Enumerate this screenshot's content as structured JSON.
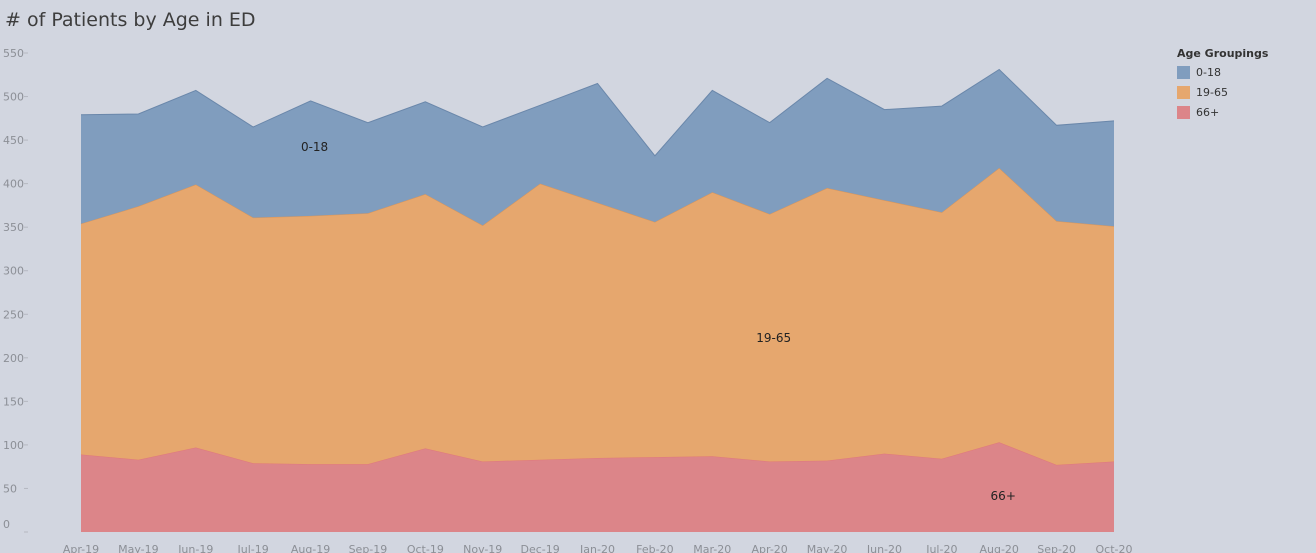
{
  "chart_data": {
    "type": "area",
    "stacked": true,
    "title": "# of Patients by Age in ED",
    "categories": [
      "Apr-19",
      "May-19",
      "Jun-19",
      "Jul-19",
      "Aug-19",
      "Sep-19",
      "Oct-19",
      "Nov-19",
      "Dec-19",
      "Jan-20",
      "Feb-20",
      "Mar-20",
      "Apr-20",
      "May-20",
      "Jun-20",
      "Jul-20",
      "Aug-20",
      "Sep-20",
      "Oct-20"
    ],
    "series": [
      {
        "name": "66+",
        "color": "#dc8589",
        "values": [
          89,
          83,
          97,
          79,
          78,
          78,
          96,
          81,
          83,
          85,
          86,
          87,
          81,
          82,
          90,
          84,
          103,
          77,
          81
        ]
      },
      {
        "name": "19-65",
        "color": "#e6a76e",
        "values": [
          265,
          291,
          302,
          282,
          285,
          288,
          292,
          271,
          317,
          293,
          270,
          303,
          284,
          313,
          291,
          283,
          315,
          280,
          270
        ]
      },
      {
        "name": "0-18",
        "color": "#809dbe",
        "values": [
          125,
          106,
          108,
          104,
          132,
          104,
          106,
          113,
          90,
          137,
          76,
          117,
          105,
          126,
          104,
          122,
          113,
          110,
          121
        ]
      }
    ],
    "ylim": [
      0,
      550
    ],
    "yticks": [
      0,
      50,
      100,
      150,
      200,
      250,
      300,
      350,
      400,
      450,
      500,
      550
    ],
    "xlabel": "",
    "ylabel": "",
    "legend": {
      "title": "Age Groupings",
      "position": "right",
      "items": [
        "0-18",
        "19-65",
        "66+"
      ]
    },
    "area_labels": [
      {
        "series": "0-18",
        "text": "0-18"
      },
      {
        "series": "19-65",
        "text": "19-65"
      },
      {
        "series": "66+",
        "text": "66+"
      }
    ]
  }
}
